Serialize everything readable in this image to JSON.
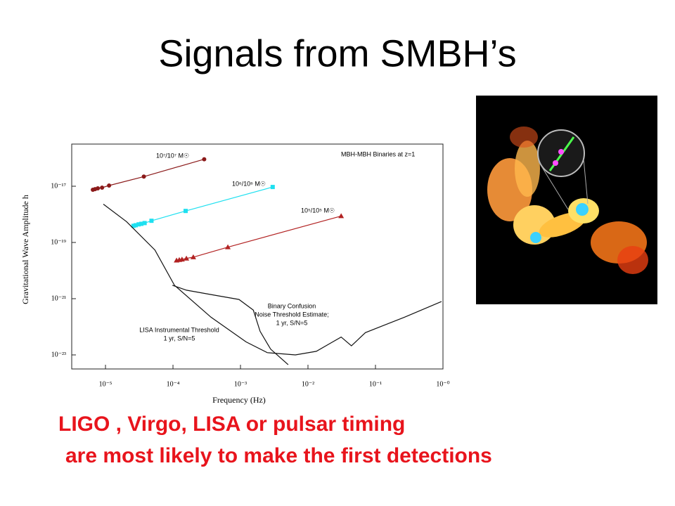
{
  "title": "Signals from SMBH’s",
  "caption": [
    "LIGO , Virgo, LISA or pulsar timing",
    "are most likely to make the first detections"
  ],
  "chart_data": {
    "type": "line",
    "annotation": "MBH-MBH Binaries at z=1",
    "xlabel": "Frequency (Hz)",
    "ylabel": "Gravitational Wave Amplitude h",
    "xscale": "log",
    "yscale": "log",
    "xlim": [
      3.16e-06,
      1
    ],
    "ylim": [
      3.16e-24,
      3.16e-16
    ],
    "xticks": [
      {
        "value": 1e-05,
        "label": "10⁻⁵"
      },
      {
        "value": 0.0001,
        "label": "10⁻⁴"
      },
      {
        "value": 0.001,
        "label": "10⁻³"
      },
      {
        "value": 0.01,
        "label": "10⁻²"
      },
      {
        "value": 0.1,
        "label": "10⁻¹"
      },
      {
        "value": 1,
        "label": "10⁻⁰"
      }
    ],
    "yticks": [
      {
        "value": 1e-17,
        "label": "10⁻¹⁷"
      },
      {
        "value": 1e-19,
        "label": "10⁻¹⁹"
      },
      {
        "value": 1e-21,
        "label": "10⁻²¹"
      },
      {
        "value": 1e-23,
        "label": "10⁻²³"
      }
    ],
    "series": [
      {
        "label": [
          "10⁷/10⁷ M☉"
        ],
        "color": "#8b1a1a",
        "marker": "circle",
        "x": [
          6.5e-06,
          7e-06,
          7.7e-06,
          8.9e-06,
          1.13e-05,
          3.7e-05,
          0.00029
        ],
        "values": [
          7.5e-18,
          7.9e-18,
          8.4e-18,
          8.9e-18,
          1.06e-17,
          2.2e-17,
          9.1e-17
        ]
      },
      {
        "label": [
          "10⁶/10⁶ M☉"
        ],
        "color": "#1ee0f0",
        "marker": "square",
        "x": [
          2.6e-05,
          2.8e-05,
          3.1e-05,
          3.4e-05,
          3.8e-05,
          4.8e-05,
          0.000154,
          0.003
        ],
        "values": [
          3.9e-19,
          4.1e-19,
          4.4e-19,
          4.6e-19,
          4.9e-19,
          5.9e-19,
          1.32e-18,
          9.4e-18
        ]
      },
      {
        "label": [
          "10⁵/10⁵ M☉"
        ],
        "color": "#b22222",
        "marker": "triangle",
        "x": [
          0.000113,
          0.000124,
          0.000136,
          0.000158,
          0.0002,
          0.00065,
          0.031
        ],
        "values": [
          2.3e-20,
          2.4e-20,
          2.5e-20,
          2.7e-20,
          3e-20,
          6.8e-20,
          8.7e-19
        ]
      },
      {
        "label": [
          "LISA Instrumental Threshold",
          "1 yr, S/N=5"
        ],
        "color": "#111111",
        "marker": "none",
        "x": [
          9.3e-06,
          2.05e-05,
          5.4e-05,
          0.000105,
          0.000365,
          0.00121,
          0.0025,
          0.0065,
          0.0133,
          0.0215,
          0.031,
          0.044,
          0.071,
          0.13,
          0.27,
          0.95
        ],
        "values": [
          2.3e-18,
          5.5e-19,
          5.4e-20,
          3e-21,
          2.2e-22,
          2.9e-23,
          1.2e-23,
          1e-23,
          1.34e-23,
          2.6e-23,
          4.3e-23,
          2.1e-23,
          6.2e-23,
          1.1e-22,
          2.2e-22,
          7.9e-22
        ]
      },
      {
        "label": [
          "Binary Confusion",
          "Noise Threshold Estimate;",
          "1 yr, S/N=5"
        ],
        "color": "#111111",
        "marker": "none",
        "x": [
          9.8e-05,
          0.000158,
          0.000365,
          0.00095,
          0.00155,
          0.00195,
          0.0028,
          0.0051
        ],
        "values": [
          3e-21,
          2e-21,
          1.4e-21,
          9.4e-22,
          3.9e-22,
          6.9e-23,
          1.6e-23,
          4.5e-24
        ]
      }
    ]
  }
}
